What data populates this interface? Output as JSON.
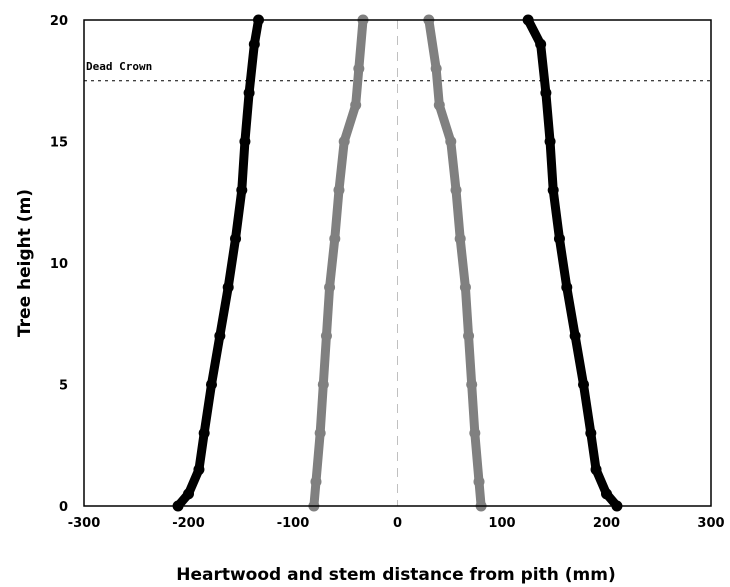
{
  "chart_data": {
    "type": "scatter",
    "title": "",
    "xlabel": "Heartwood and stem distance from pith (mm)",
    "ylabel": "Tree height (m)",
    "xlim": [
      -300,
      300
    ],
    "ylim": [
      0,
      20
    ],
    "xticks": [
      "-300",
      "-200",
      "-100",
      "0",
      "100",
      "200",
      "300"
    ],
    "yticks": [
      "0",
      "5",
      "10",
      "15",
      "20"
    ],
    "center_line_x": 0,
    "reference_line": {
      "y": 17.5,
      "label": "Dead Crown"
    },
    "series": [
      {
        "role": "stem-left",
        "color": "#000000",
        "points": [
          [
            -210,
            0
          ],
          [
            -200,
            0.5
          ],
          [
            -190,
            1.5
          ],
          [
            -185,
            3
          ],
          [
            -178,
            5
          ],
          [
            -170,
            7
          ],
          [
            -162,
            9
          ],
          [
            -155,
            11
          ],
          [
            -149,
            13
          ],
          [
            -146,
            15
          ],
          [
            -142,
            17
          ],
          [
            -137,
            19
          ],
          [
            -133,
            20
          ]
        ]
      },
      {
        "role": "heartwood-left",
        "color": "#808080",
        "points": [
          [
            -80,
            0
          ],
          [
            -78,
            1
          ],
          [
            -74,
            3
          ],
          [
            -71,
            5
          ],
          [
            -68,
            7
          ],
          [
            -65,
            9
          ],
          [
            -60,
            11
          ],
          [
            -56,
            13
          ],
          [
            -51,
            15
          ],
          [
            -40,
            16.5
          ],
          [
            -37,
            18
          ],
          [
            -33,
            20
          ]
        ]
      },
      {
        "role": "heartwood-right",
        "color": "#808080",
        "points": [
          [
            80,
            0
          ],
          [
            78,
            1
          ],
          [
            74,
            3
          ],
          [
            71,
            5
          ],
          [
            68,
            7
          ],
          [
            65,
            9
          ],
          [
            60,
            11
          ],
          [
            56,
            13
          ],
          [
            51,
            15
          ],
          [
            40,
            16.5
          ],
          [
            37,
            18
          ],
          [
            30,
            20
          ]
        ]
      },
      {
        "role": "stem-right",
        "color": "#000000",
        "points": [
          [
            210,
            0
          ],
          [
            200,
            0.5
          ],
          [
            190,
            1.5
          ],
          [
            185,
            3
          ],
          [
            178,
            5
          ],
          [
            170,
            7
          ],
          [
            162,
            9
          ],
          [
            155,
            11
          ],
          [
            149,
            13
          ],
          [
            146,
            15
          ],
          [
            142,
            17
          ],
          [
            137,
            19
          ],
          [
            125,
            20
          ]
        ]
      }
    ]
  }
}
